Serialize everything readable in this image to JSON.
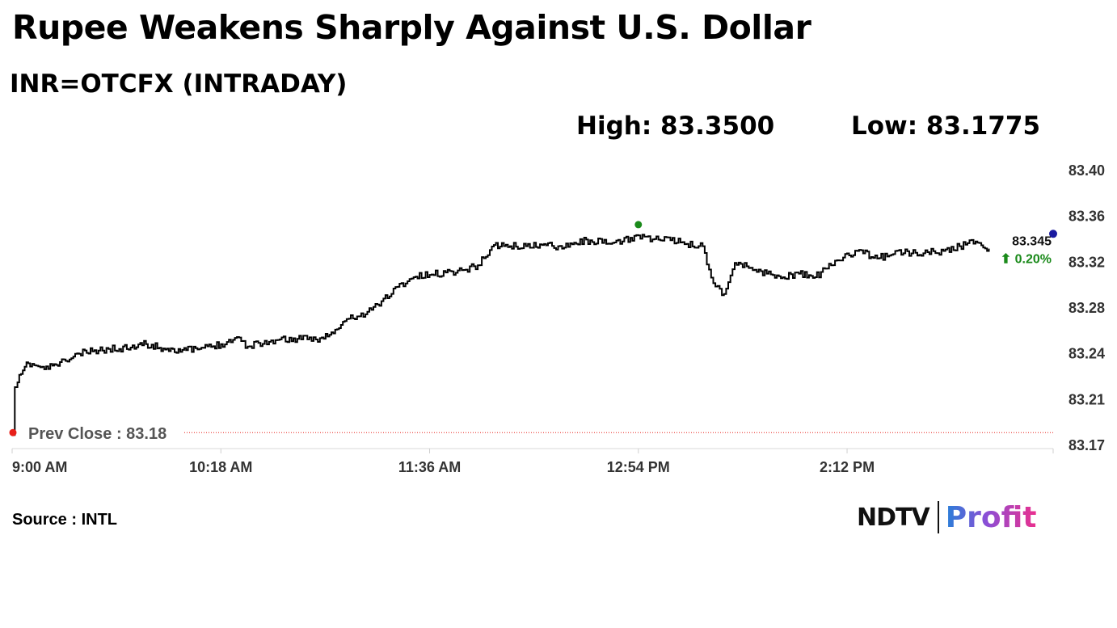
{
  "title": "Rupee Weakens Sharply Against U.S. Dollar",
  "subtitle": "INR=OTCFX (INTRADAY)",
  "stats": {
    "high_label": "High: 83.3500",
    "low_label": "Low: 83.1775"
  },
  "source": "Source : INTL",
  "logo": {
    "left": "NDTV",
    "right": "Profit"
  },
  "colors": {
    "line": "#000000",
    "prev_close": "#e8201a",
    "high_marker": "#1a8a1a",
    "last_marker": "#1a1aa0",
    "change_up": "#1a8a1a"
  },
  "chart_data": {
    "type": "line",
    "title": "INR=OTCFX (INTRADAY)",
    "xlabel": "",
    "ylabel": "",
    "x_ticks": [
      "9:00 AM",
      "10:18 AM",
      "11:36 AM",
      "12:54 PM",
      "2:12 PM"
    ],
    "y_ticks": [
      "83.40",
      "83.36",
      "83.32",
      "83.28",
      "83.24",
      "83.21",
      "83.17"
    ],
    "ylim": [
      83.17,
      83.4
    ],
    "x_range_minutes": [
      0,
      389
    ],
    "prev_close": {
      "value": 83.18,
      "label": "Prev Close : 83.18"
    },
    "last": {
      "value": 83.345,
      "label": "83.345",
      "change": "⬆ 0.20%"
    },
    "high_point": {
      "time": "12:54 PM",
      "value": 83.35
    },
    "grid": false,
    "series": [
      {
        "x": [
          "9:00 AM",
          "9:01 AM",
          "9:02 AM",
          "9:04 AM",
          "9:06 AM",
          "9:09 AM",
          "9:12 AM",
          "9:15 AM",
          "9:20 AM",
          "9:25 AM",
          "9:30 AM",
          "9:36 AM",
          "9:40 AM",
          "9:45 AM",
          "9:50 AM",
          "9:55 AM",
          "10:00 AM",
          "10:05 AM",
          "10:10 AM",
          "10:18 AM",
          "10:24 AM",
          "10:28 AM",
          "10:32 AM",
          "10:36 AM",
          "10:40 AM",
          "10:48 AM",
          "10:55 AM",
          "11:00 AM",
          "11:05 AM",
          "11:12 AM",
          "11:18 AM",
          "11:24 AM",
          "11:30 AM",
          "11:36 AM",
          "11:42 AM",
          "11:48 AM",
          "11:54 AM",
          "12:00 PM",
          "12:06 PM",
          "12:12 PM",
          "12:18 PM",
          "12:24 PM",
          "12:30 PM",
          "12:36 PM",
          "12:42 PM",
          "12:48 PM",
          "12:54 PM",
          "1:00 PM",
          "1:06 PM",
          "1:12 PM",
          "1:18 PM",
          "1:22 PM",
          "1:26 PM",
          "1:30 PM",
          "1:36 PM",
          "1:42 PM",
          "1:48 PM",
          "1:54 PM",
          "2:00 PM",
          "2:06 PM",
          "2:12 PM",
          "2:18 PM",
          "2:24 PM",
          "2:30 PM",
          "2:36 PM",
          "2:42 PM",
          "2:48 PM",
          "2:54 PM",
          "3:00 PM",
          "3:05 PM"
        ],
        "y": [
          83.178,
          83.218,
          83.222,
          83.232,
          83.238,
          83.236,
          83.233,
          83.236,
          83.24,
          83.246,
          83.248,
          83.25,
          83.25,
          83.253,
          83.254,
          83.251,
          83.25,
          83.249,
          83.25,
          83.254,
          83.26,
          83.252,
          83.255,
          83.256,
          83.258,
          83.258,
          83.259,
          83.263,
          83.275,
          83.279,
          83.29,
          83.302,
          83.31,
          83.312,
          83.314,
          83.316,
          83.32,
          83.337,
          83.336,
          83.336,
          83.337,
          83.336,
          83.339,
          83.341,
          83.338,
          83.34,
          83.345,
          83.342,
          83.341,
          83.338,
          83.336,
          83.305,
          83.296,
          83.322,
          83.318,
          83.313,
          83.31,
          83.313,
          83.31,
          83.32,
          83.33,
          83.33,
          83.326,
          83.332,
          83.33,
          83.331,
          83.332,
          83.336,
          83.34,
          83.334
        ]
      }
    ]
  }
}
